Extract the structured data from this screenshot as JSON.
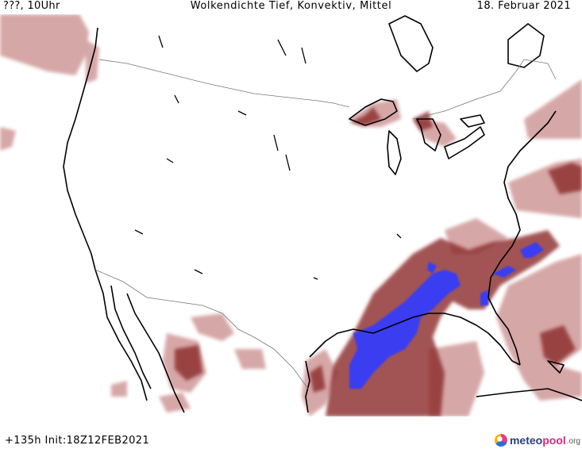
{
  "header": {
    "left": "???, 10Uhr",
    "center": "Wolkendichte  Tief, Konvektiv, Mittel",
    "right": "18. Februar 2021"
  },
  "footer": {
    "left": "+135h Init:18Z12FEB2021",
    "logo": {
      "brand_part1": "meteo",
      "brand_part2": "pool",
      "tld": ".org"
    }
  },
  "legend_colors": {
    "cloud_low": "#c98a8a",
    "cloud_high": "#8b2a2a",
    "convective": "#3a3ef0"
  }
}
